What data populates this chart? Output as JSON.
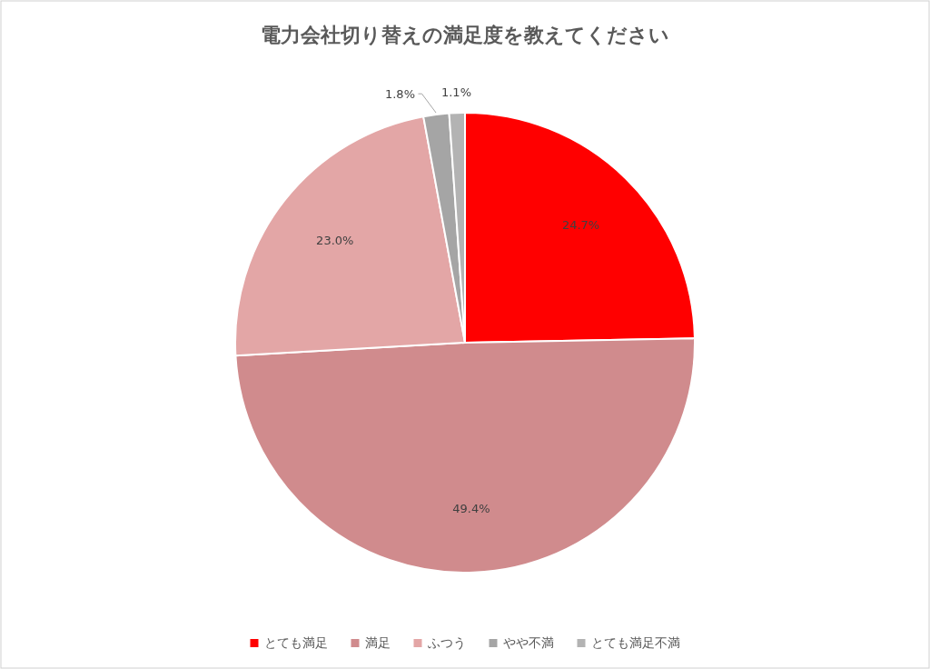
{
  "chart_data": {
    "type": "pie",
    "title": "電力会社切り替えの満足度を教えてください",
    "categories": [
      "とても満足",
      "満足",
      "ふつう",
      "やや不満",
      "とても満足不満"
    ],
    "values": [
      24.7,
      49.4,
      23.0,
      1.8,
      1.1
    ],
    "colors": [
      "#ff0000",
      "#d08b8d",
      "#e3a6a6",
      "#a5a5a5",
      "#b3b3b3"
    ],
    "value_labels": [
      "24.7%",
      "49.4%",
      "23.0%",
      "1.8%",
      "1.1%"
    ],
    "legend": "bottom"
  }
}
